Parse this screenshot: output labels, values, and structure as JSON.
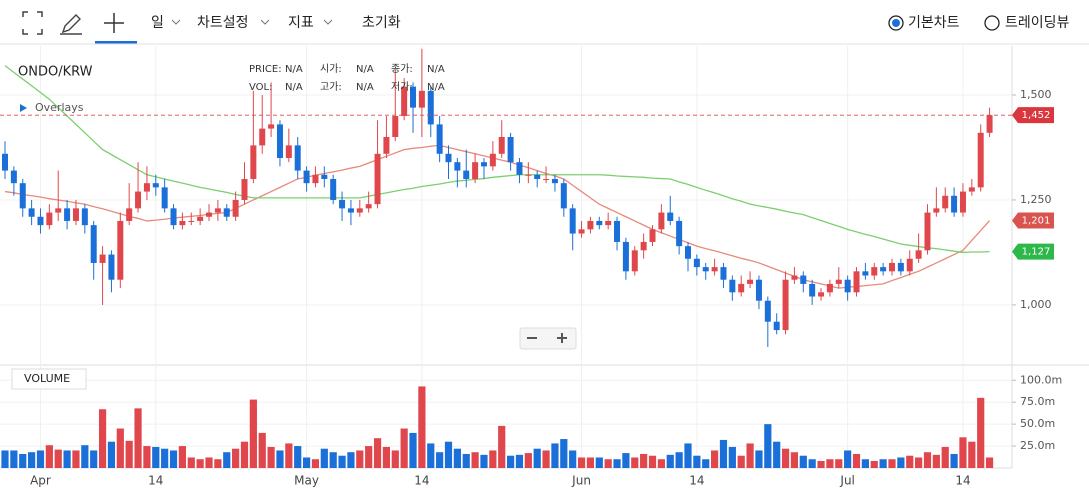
{
  "toolbar": {
    "period": "일",
    "settings": "차트설정",
    "indicators": "지표",
    "reset": "초기화",
    "chart_modes": [
      "기본차트",
      "트레이딩뷰"
    ]
  },
  "chart_data": {
    "type": "candlestick",
    "title": "ONDO/KRW",
    "overlays": "Overlays",
    "info": [
      {
        "label": "PRICE:",
        "value": "N/A"
      },
      {
        "label": "VOL:",
        "value": "N/A"
      },
      {
        "label": "시가:",
        "value": "N/A"
      },
      {
        "label": "고가:",
        "value": "N/A"
      },
      {
        "label": "종가:",
        "value": "N/A"
      },
      {
        "label": "저가:",
        "value": "N/A"
      }
    ],
    "categories": [
      null,
      null,
      null,
      null,
      "Apr",
      null,
      null,
      null,
      null,
      null,
      null,
      null,
      null,
      null,
      null,
      null,
      null,
      "14",
      null,
      null,
      null,
      null,
      null,
      null,
      null,
      null,
      null,
      null,
      null,
      null,
      null,
      null,
      null,
      null,
      "May",
      null,
      null,
      null,
      null,
      null,
      null,
      null,
      null,
      null,
      null,
      null,
      null,
      "14",
      null,
      null,
      null,
      null,
      null,
      null,
      null,
      null,
      null,
      null,
      null,
      null,
      null,
      null,
      null,
      null,
      null,
      "Jun",
      null,
      null,
      null,
      null,
      null,
      null,
      null,
      null,
      null,
      null,
      null,
      null,
      "14",
      null,
      null,
      null,
      null,
      null,
      null,
      null,
      null,
      null,
      null,
      null,
      null,
      null,
      null,
      null,
      null,
      "Jul",
      null,
      null,
      null,
      null,
      null,
      null,
      null,
      null,
      null,
      null,
      null,
      null,
      "14",
      null,
      null,
      null
    ],
    "candles": {
      "up_color": "#e0474c",
      "down_color": "#1a6fd8",
      "last_label": "1,452",
      "open": [
        1360,
        1320,
        1290,
        1230,
        1210,
        1190,
        1220,
        1230,
        1200,
        1230,
        1190,
        1100,
        1120,
        1060,
        1200,
        1230,
        1270,
        1290,
        1280,
        1230,
        1190,
        1200,
        1200,
        1210,
        1220,
        1230,
        1210,
        1250,
        1300,
        1380,
        1420,
        1430,
        1350,
        1380,
        1320,
        1290,
        1310,
        1300,
        1250,
        1230,
        1220,
        1230,
        1240,
        1360,
        1400,
        1450,
        1520,
        1470,
        1510,
        1430,
        1360,
        1340,
        1320,
        1300,
        1340,
        1330,
        1360,
        1400,
        1340,
        1310,
        1310,
        1300,
        1300,
        1290,
        1230,
        1170,
        1180,
        1200,
        1190,
        1200,
        1150,
        1080,
        1130,
        1150,
        1180,
        1220,
        1200,
        1140,
        1110,
        1090,
        1080,
        1090,
        1060,
        1030,
        1050,
        1060,
        1010,
        960,
        940,
        1060,
        1070,
        1050,
        1020,
        1030,
        1050,
        1060,
        1030,
        1080,
        1070,
        1090,
        1080,
        1100,
        1080,
        1110,
        1130,
        1220,
        1230,
        1260,
        1220,
        1270,
        1280,
        1410
      ],
      "high": [
        1390,
        1330,
        1300,
        1250,
        1230,
        1240,
        1320,
        1250,
        1250,
        1240,
        1200,
        1140,
        1130,
        1220,
        1290,
        1340,
        1330,
        1310,
        1300,
        1240,
        1220,
        1220,
        1230,
        1240,
        1250,
        1240,
        1270,
        1340,
        1510,
        1500,
        1530,
        1440,
        1420,
        1400,
        1330,
        1330,
        1330,
        1310,
        1270,
        1250,
        1250,
        1270,
        1440,
        1450,
        1560,
        1540,
        1530,
        1610,
        1520,
        1450,
        1380,
        1350,
        1370,
        1360,
        1350,
        1390,
        1440,
        1410,
        1350,
        1340,
        1320,
        1330,
        1310,
        1300,
        1240,
        1200,
        1210,
        1210,
        1220,
        1210,
        1160,
        1140,
        1170,
        1190,
        1240,
        1260,
        1210,
        1150,
        1120,
        1100,
        1110,
        1100,
        1070,
        1070,
        1080,
        1070,
        1020,
        980,
        1080,
        1090,
        1080,
        1060,
        1040,
        1060,
        1090,
        1070,
        1090,
        1100,
        1100,
        1100,
        1110,
        1110,
        1130,
        1170,
        1240,
        1280,
        1280,
        1280,
        1290,
        1300,
        1430,
        1470
      ],
      "low": [
        1300,
        1260,
        1210,
        1190,
        1170,
        1180,
        1200,
        1180,
        1190,
        1170,
        1060,
        1000,
        1030,
        1040,
        1190,
        1220,
        1250,
        1260,
        1220,
        1180,
        1180,
        1190,
        1190,
        1200,
        1200,
        1200,
        1200,
        1240,
        1290,
        1360,
        1400,
        1330,
        1340,
        1300,
        1270,
        1280,
        1280,
        1240,
        1200,
        1190,
        1210,
        1220,
        1230,
        1350,
        1390,
        1440,
        1410,
        1400,
        1400,
        1340,
        1300,
        1280,
        1280,
        1290,
        1300,
        1320,
        1350,
        1320,
        1290,
        1290,
        1280,
        1290,
        1270,
        1210,
        1130,
        1160,
        1170,
        1180,
        1180,
        1130,
        1060,
        1070,
        1110,
        1140,
        1170,
        1190,
        1120,
        1080,
        1070,
        1060,
        1070,
        1040,
        1010,
        1020,
        1040,
        990,
        900,
        930,
        930,
        1050,
        1030,
        1000,
        1010,
        1020,
        1040,
        1010,
        1020,
        1060,
        1060,
        1070,
        1070,
        1070,
        1070,
        1100,
        1120,
        1210,
        1220,
        1210,
        1210,
        1260,
        1270,
        1400
      ],
      "close": [
        1320,
        1290,
        1230,
        1210,
        1190,
        1220,
        1230,
        1200,
        1230,
        1190,
        1100,
        1120,
        1060,
        1200,
        1230,
        1270,
        1290,
        1280,
        1230,
        1190,
        1200,
        1200,
        1210,
        1220,
        1230,
        1210,
        1250,
        1300,
        1380,
        1420,
        1430,
        1350,
        1380,
        1320,
        1290,
        1310,
        1300,
        1250,
        1230,
        1220,
        1230,
        1240,
        1360,
        1400,
        1450,
        1520,
        1470,
        1510,
        1430,
        1360,
        1340,
        1320,
        1300,
        1340,
        1330,
        1360,
        1400,
        1340,
        1310,
        1310,
        1300,
        1300,
        1290,
        1230,
        1170,
        1180,
        1200,
        1190,
        1200,
        1150,
        1080,
        1130,
        1150,
        1180,
        1220,
        1200,
        1140,
        1110,
        1090,
        1080,
        1090,
        1060,
        1030,
        1050,
        1060,
        1010,
        960,
        940,
        1060,
        1070,
        1050,
        1020,
        1030,
        1050,
        1060,
        1030,
        1080,
        1070,
        1090,
        1080,
        1100,
        1080,
        1110,
        1130,
        1220,
        1230,
        1260,
        1220,
        1270,
        1280,
        1410,
        1452
      ],
      "volume": [
        20,
        20,
        16,
        18,
        20,
        26,
        21,
        20,
        20,
        26,
        20,
        67,
        30,
        45,
        31,
        68,
        25,
        24,
        22,
        20,
        25,
        12,
        10,
        12,
        10,
        18,
        22,
        30,
        78,
        40,
        24,
        20,
        28,
        25,
        12,
        10,
        22,
        18,
        14,
        18,
        20,
        25,
        34,
        24,
        20,
        45,
        40,
        93,
        28,
        18,
        30,
        22,
        16,
        18,
        15,
        20,
        48,
        14,
        15,
        17,
        22,
        20,
        28,
        33,
        20,
        12,
        12,
        12,
        10,
        10,
        17,
        12,
        16,
        14,
        10,
        15,
        18,
        28,
        14,
        10,
        20,
        32,
        24,
        14,
        28,
        20,
        50,
        30,
        22,
        18,
        14,
        10,
        8,
        10,
        10,
        20,
        16,
        10,
        8,
        10,
        10,
        12,
        14,
        12,
        18,
        15,
        24,
        16,
        35,
        30,
        80,
        12
      ]
    },
    "series": [
      {
        "color": "#e8897a",
        "value_label": "1,201",
        "values": [
          1270,
          1267,
          1263,
          1260,
          1257,
          1253,
          1250,
          1247,
          1243,
          1240,
          1234,
          1229,
          1223,
          1217,
          1211,
          1206,
          1200,
          1202,
          1204,
          1207,
          1209,
          1211,
          1213,
          1216,
          1218,
          1220,
          1230,
          1240,
          1250,
          1260,
          1270,
          1280,
          1290,
          1300,
          1304,
          1309,
          1313,
          1317,
          1321,
          1326,
          1330,
          1338,
          1346,
          1354,
          1362,
          1370,
          1373,
          1375,
          1378,
          1380,
          1375,
          1370,
          1365,
          1360,
          1355,
          1350,
          1345,
          1340,
          1333,
          1327,
          1320,
          1313,
          1307,
          1300,
          1285,
          1270,
          1255,
          1240,
          1230,
          1220,
          1210,
          1200,
          1190,
          1180,
          1172,
          1164,
          1156,
          1148,
          1140,
          1134,
          1129,
          1123,
          1117,
          1111,
          1106,
          1100,
          1092,
          1084,
          1076,
          1068,
          1060,
          1055,
          1050,
          1045,
          1040,
          1042,
          1044,
          1046,
          1048,
          1050,
          1058,
          1065,
          1073,
          1080,
          1090,
          1100,
          1110,
          1120,
          1130,
          1154,
          1177,
          1201
        ]
      },
      {
        "color": "#7ccf6e",
        "value_label": "1,127",
        "values": [
          1570,
          1554,
          1538,
          1522,
          1506,
          1490,
          1470,
          1450,
          1430,
          1410,
          1390,
          1370,
          1358,
          1346,
          1334,
          1322,
          1310,
          1305,
          1300,
          1295,
          1290,
          1285,
          1280,
          1276,
          1272,
          1268,
          1263,
          1259,
          1255,
          1255,
          1255,
          1255,
          1255,
          1255,
          1255,
          1255,
          1255,
          1255,
          1255,
          1255,
          1255,
          1259,
          1263,
          1267,
          1271,
          1275,
          1278,
          1282,
          1285,
          1288,
          1292,
          1295,
          1297,
          1299,
          1301,
          1304,
          1306,
          1308,
          1310,
          1310,
          1310,
          1310,
          1310,
          1310,
          1310,
          1310,
          1310,
          1310,
          1309,
          1307,
          1306,
          1305,
          1304,
          1302,
          1301,
          1300,
          1293,
          1287,
          1280,
          1273,
          1267,
          1260,
          1253,
          1247,
          1240,
          1236,
          1232,
          1228,
          1223,
          1219,
          1215,
          1208,
          1201,
          1194,
          1187,
          1180,
          1174,
          1168,
          1163,
          1157,
          1151,
          1145,
          1142,
          1139,
          1136,
          1134,
          1131,
          1128,
          1125,
          1126,
          1126,
          1127
        ]
      }
    ],
    "ylim": [
      864,
      1612
    ],
    "yticks": [
      {
        "value": 1000,
        "label": "1,000"
      },
      {
        "value": 1250,
        "label": "1,250"
      },
      {
        "value": 1500,
        "label": "1,500"
      }
    ],
    "grid": true,
    "volume_panel": {
      "title": "VOLUME",
      "ylim": [
        0,
        114
      ],
      "yticks": [
        {
          "value": 25,
          "label": "25.0m"
        },
        {
          "value": 50,
          "label": "50.0m"
        },
        {
          "value": 75,
          "label": "75.0m"
        },
        {
          "value": 100,
          "label": "100.0m"
        }
      ]
    }
  }
}
